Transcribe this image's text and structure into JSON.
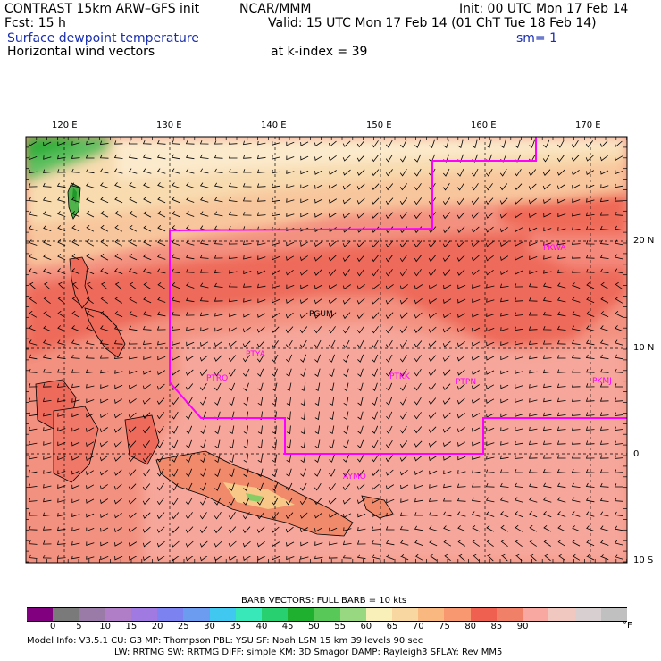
{
  "header": {
    "line1_left": "CONTRAST 15km ARW–GFS init",
    "line1_mid": "NCAR/MMM",
    "line1_right": "Init: 00 UTC Mon 17 Feb 14",
    "line2_left": "Fcst:   15 h",
    "line2_right": "Valid: 15 UTC Mon 17 Feb 14 (01 ChT Tue 18 Feb 14)",
    "field1": "Surface dewpoint temperature",
    "smoothing": "sm= 1",
    "field2": "Horizontal wind vectors",
    "level": "at k-index =  39"
  },
  "axes": {
    "lon_labels": [
      "120 E",
      "130 E",
      "140 E",
      "150 E",
      "160 E",
      "170 E"
    ],
    "lat_labels": [
      "20 N",
      "10 N",
      "0",
      "10 S"
    ]
  },
  "stations": [
    {
      "code": "PGUM",
      "color": "#000000"
    },
    {
      "code": "PTYA",
      "color": "#ff00ff"
    },
    {
      "code": "PTRO",
      "color": "#ff00ff"
    },
    {
      "code": "PTKK",
      "color": "#ff00ff"
    },
    {
      "code": "PTPN",
      "color": "#ff00ff"
    },
    {
      "code": "PKWA",
      "color": "#ff00ff"
    },
    {
      "code": "PKMJ",
      "color": "#ff00ff"
    },
    {
      "code": "AYMO",
      "color": "#ff00ff"
    }
  ],
  "barb_note": "BARB VECTORS:  FULL BARB = 10 kts",
  "colorbar": {
    "labels": [
      "0",
      "5",
      "10",
      "15",
      "20",
      "25",
      "30",
      "35",
      "40",
      "45",
      "50",
      "55",
      "60",
      "65",
      "70",
      "75",
      "80",
      "85",
      "90"
    ],
    "unit": "°F",
    "colors": [
      "#800080",
      "#7a7a7a",
      "#9a7aa6",
      "#b07ec6",
      "#a07ae0",
      "#7c82f0",
      "#6c9cf0",
      "#40c8f0",
      "#38e8b8",
      "#28d070",
      "#20b030",
      "#58c858",
      "#98d880",
      "#f8f0b8",
      "#f8d8a0",
      "#f8b880",
      "#f89870",
      "#f06050",
      "#f08068",
      "#f8a8a0",
      "#f0c8c0",
      "#d8d0d0",
      "#c0c0c0"
    ]
  },
  "footer": {
    "line1": "Model Info: V3.5.1     CU: G3       MP: Thompson     PBL: YSU        SF: Noah LSM     15 km    39 levels    90 sec",
    "line2": "LW: RRTMG    SW: RRTMG   DIFF: simple KM: 3D Smagor DAMP: Rayleigh3  SFLAY: Rev MM5"
  }
}
